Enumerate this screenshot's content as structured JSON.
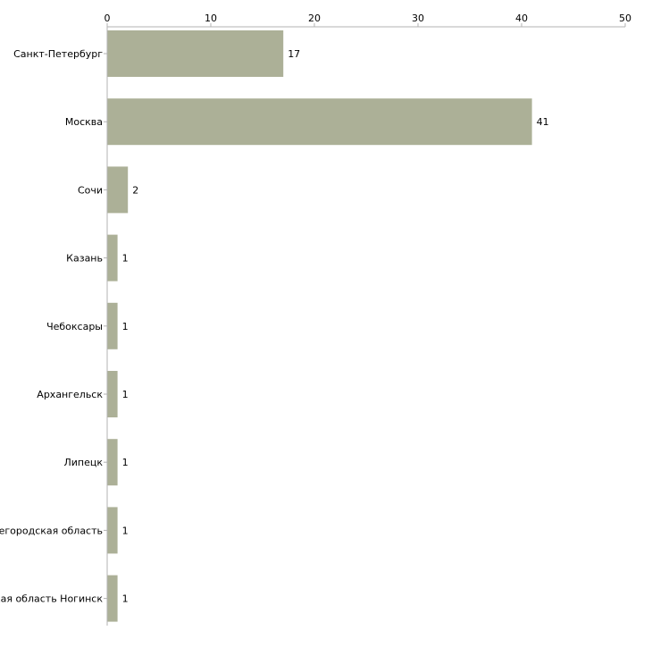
{
  "chart_data": {
    "type": "bar",
    "orientation": "horizontal",
    "title": "",
    "xlabel": "",
    "ylabel": "",
    "xlim": [
      0,
      50
    ],
    "ticks": [
      "0",
      "10",
      "20",
      "30",
      "40",
      "50"
    ],
    "tick_values": [
      0,
      10,
      20,
      30,
      40,
      50
    ],
    "grid": false,
    "legend": "none",
    "categories": [
      "Санкт-Петербург",
      "Москва",
      "Сочи",
      "Казань",
      "Чебоксары",
      "Архангельск",
      "Липецк",
      "Нижегородская область",
      "Московская область Ногинск"
    ],
    "values": [
      17,
      41,
      2,
      1,
      1,
      1,
      1,
      1,
      1
    ],
    "value_labels": [
      "17",
      "41",
      "2",
      "1",
      "1",
      "1",
      "1",
      "1",
      "1"
    ]
  },
  "colors": {
    "bar": "#acb097",
    "axis": "#b3b3b3",
    "text": "#000000",
    "background": "#ffffff"
  }
}
